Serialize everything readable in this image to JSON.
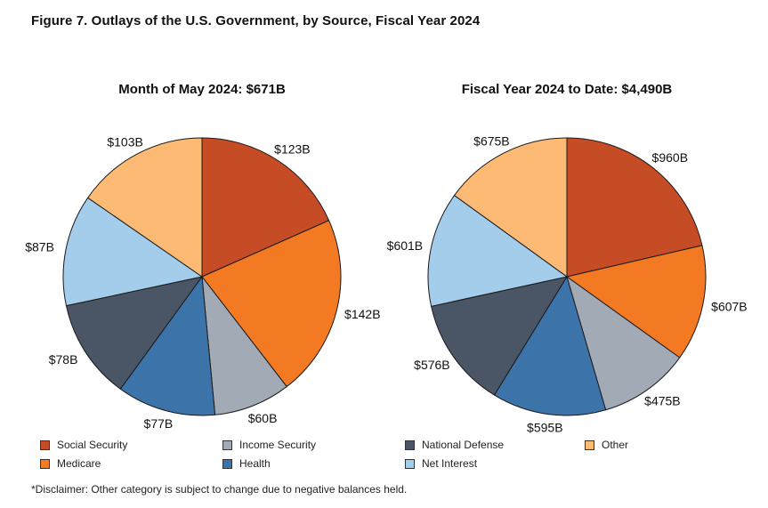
{
  "title": "Figure 7. Outlays of the U.S. Government, by Source, Fiscal Year 2024",
  "colors": {
    "Social Security": "#C64C25",
    "Medicare": "#F37A22",
    "Income Security": "#A2AAB6",
    "Health": "#3C74A9",
    "National Defense": "#4A5666",
    "Net Interest": "#A3CDEB",
    "Other": "#FDBA74"
  },
  "legend": [
    {
      "label": "Social Security"
    },
    {
      "label": "Medicare"
    },
    {
      "label": "Income Security"
    },
    {
      "label": "Health"
    },
    {
      "label": "National Defense"
    },
    {
      "label": "Net Interest"
    },
    {
      "label": "Other"
    }
  ],
  "chart_data": [
    {
      "type": "pie",
      "title": "Month of May 2024: $671B",
      "slices": [
        {
          "name": "Social Security",
          "value": 123,
          "label": "$123B"
        },
        {
          "name": "Medicare",
          "value": 142,
          "label": "$142B"
        },
        {
          "name": "Income Security",
          "value": 60,
          "label": "$60B"
        },
        {
          "name": "Health",
          "value": 77,
          "label": "$77B"
        },
        {
          "name": "National Defense",
          "value": 78,
          "label": "$78B"
        },
        {
          "name": "Net Interest",
          "value": 87,
          "label": "$87B"
        },
        {
          "name": "Other",
          "value": 103,
          "label": "$103B"
        }
      ]
    },
    {
      "type": "pie",
      "title": "Fiscal Year 2024 to Date: $4,490B",
      "slices": [
        {
          "name": "Social Security",
          "value": 960,
          "label": "$960B"
        },
        {
          "name": "Medicare",
          "value": 607,
          "label": "$607B"
        },
        {
          "name": "Income Security",
          "value": 475,
          "label": "$475B"
        },
        {
          "name": "Health",
          "value": 595,
          "label": "$595B"
        },
        {
          "name": "National Defense",
          "value": 576,
          "label": "$576B"
        },
        {
          "name": "Net Interest",
          "value": 601,
          "label": "$601B"
        },
        {
          "name": "Other",
          "value": 675,
          "label": "$675B"
        }
      ]
    }
  ],
  "disclaimer": "*Disclaimer: Other category is subject to change due to negative balances held."
}
